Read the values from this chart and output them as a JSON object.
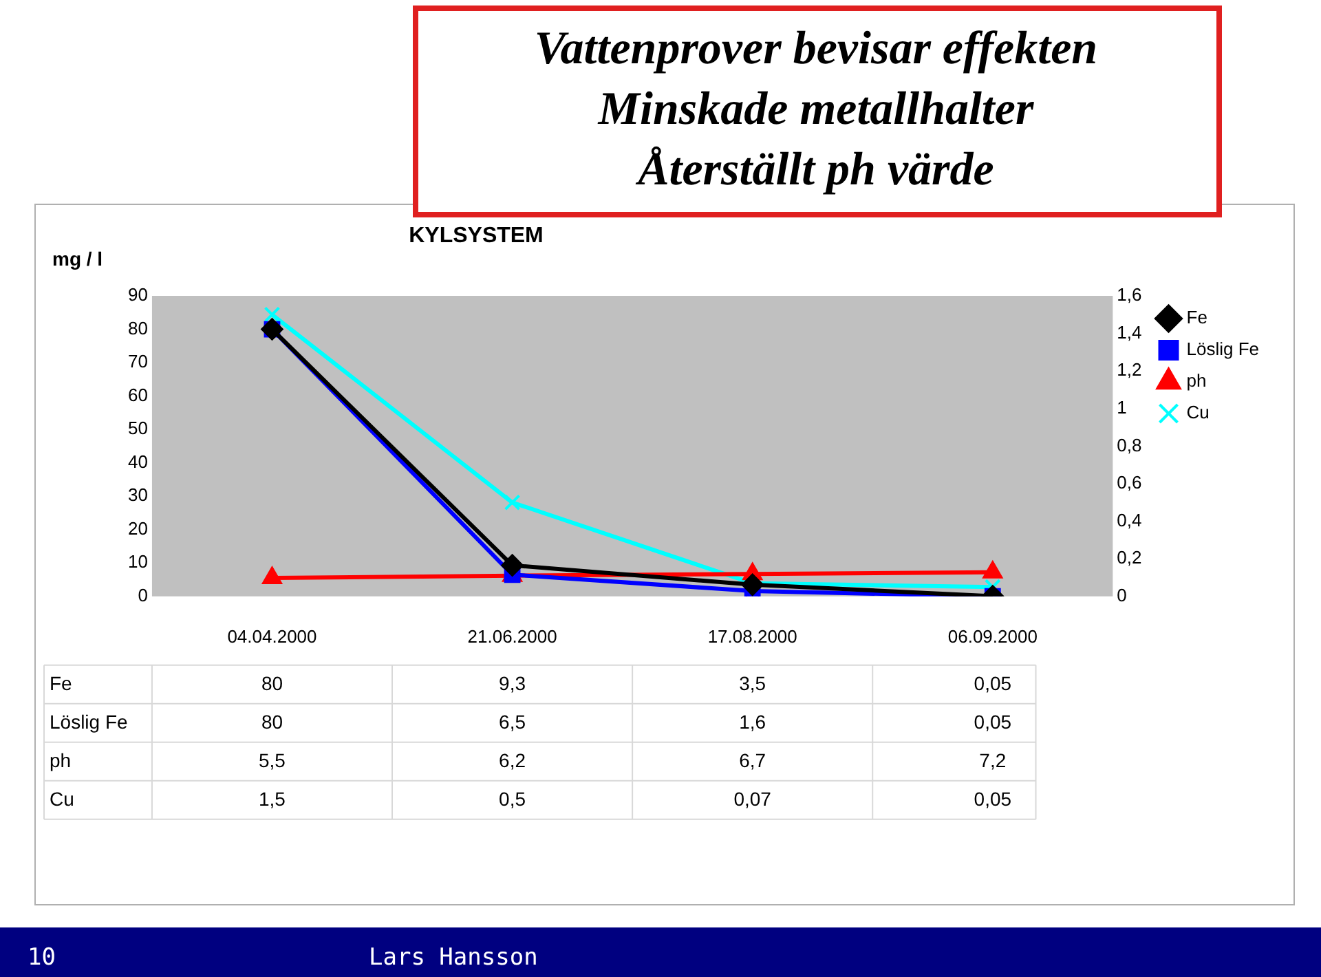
{
  "chart_data": {
    "type": "line",
    "title": "Vattenprover bevisar effekten\nMinskade metallhalter\nÅterställt ph värde",
    "subtitle": "KYLSYSTEM",
    "ylabel": "mg / l",
    "categories": [
      "04.04.2000",
      "21.06.2000",
      "17.08.2000",
      "06.09.2000"
    ],
    "series": [
      {
        "name": "Fe",
        "color": "#000000",
        "marker": "diamond",
        "values": [
          80,
          9.3,
          3.5,
          0.05
        ],
        "value_labels": [
          "80",
          "9,3",
          "3,5",
          "0,05"
        ]
      },
      {
        "name": "Löslig Fe",
        "color": "#0000ff",
        "marker": "square",
        "values": [
          80,
          6.5,
          1.6,
          0.05
        ],
        "value_labels": [
          "80",
          "6,5",
          "1,6",
          "0,05"
        ]
      },
      {
        "name": "ph",
        "color": "#ff0000",
        "marker": "triangle",
        "values": [
          5.5,
          6.2,
          6.7,
          7.2
        ],
        "value_labels": [
          "5,5",
          "6,2",
          "6,7",
          "7,2"
        ]
      },
      {
        "name": "Cu",
        "color": "#00ffff",
        "marker": "cross",
        "axis": "y2",
        "values": [
          1.5,
          0.5,
          0.07,
          0.05
        ],
        "value_labels": [
          "1,5",
          "0,5",
          "0,07",
          "0,05"
        ]
      }
    ],
    "ylim": [
      0,
      90
    ],
    "yticks": [
      0,
      10,
      20,
      30,
      40,
      50,
      60,
      70,
      80,
      90
    ],
    "y2lim": [
      0,
      1.6
    ],
    "y2ticks": [
      0,
      {
        "value": 0.2,
        "label": "0,2"
      },
      {
        "value": 0.4,
        "label": "0,4"
      },
      {
        "value": 0.6,
        "label": "0,6"
      },
      {
        "value": 0.8,
        "label": "0,8"
      },
      1,
      {
        "value": 1.2,
        "label": "1,2"
      },
      {
        "value": 1.4,
        "label": "1,4"
      },
      {
        "value": 1.6,
        "label": "1,6"
      }
    ],
    "legend": "right",
    "annotations": [
      "10",
      "Lars Hansson"
    ]
  }
}
